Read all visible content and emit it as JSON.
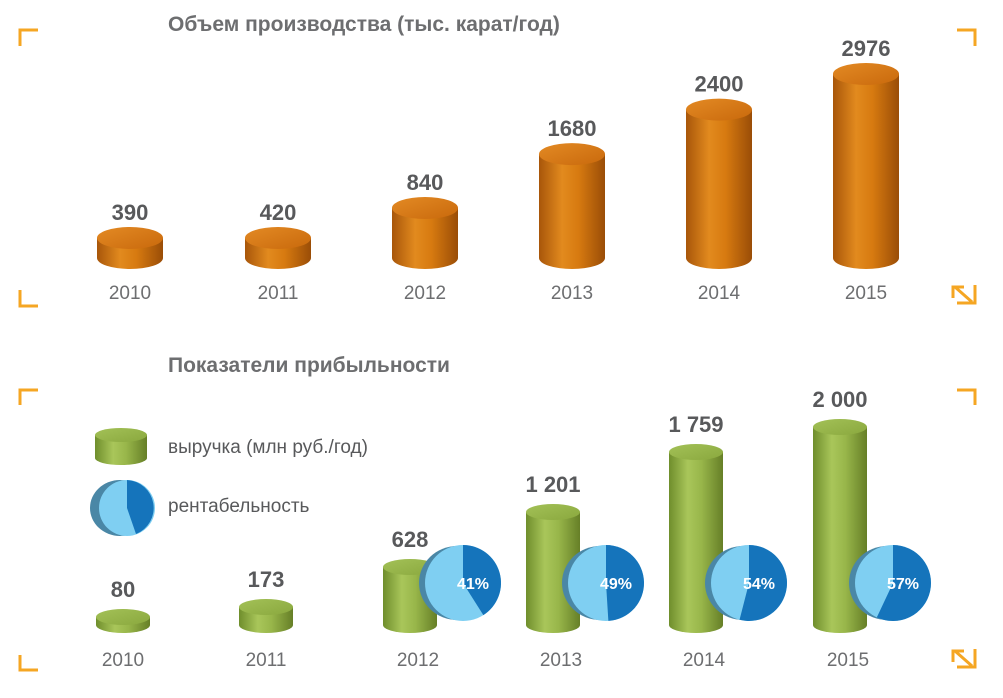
{
  "chart_data": [
    {
      "type": "bar",
      "title": "Объем производства (тыс. карат/год)",
      "categories": [
        "2010",
        "2011",
        "2012",
        "2013",
        "2014",
        "2015"
      ],
      "values": [
        390,
        420,
        840,
        1680,
        2400,
        2976
      ],
      "value_labels": [
        "390",
        "420",
        "840",
        "1680",
        "2400",
        "2976"
      ],
      "bar_color": "#d4760c"
    },
    {
      "type": "bar",
      "title": "Показатели прибыльности",
      "categories": [
        "2010",
        "2011",
        "2012",
        "2013",
        "2014",
        "2015"
      ],
      "series": [
        {
          "name": "выручка (млн руб./год)",
          "values": [
            80,
            173,
            628,
            1201,
            1759,
            2000
          ],
          "value_labels": [
            "80",
            "173",
            "628",
            "1 201",
            "1 759",
            "2 000"
          ],
          "color": "#9ab84a"
        },
        {
          "name": "рентабельность",
          "type": "pie",
          "values": [
            null,
            null,
            41,
            49,
            54,
            57
          ],
          "value_labels": [
            "",
            "",
            "41%",
            "49%",
            "54%",
            "57%"
          ],
          "color": "#1574bb",
          "secondary_color": "#7fcff2"
        }
      ]
    }
  ],
  "corner_colors": {
    "frame": "#f5a623",
    "arrow": "#f5a623"
  }
}
